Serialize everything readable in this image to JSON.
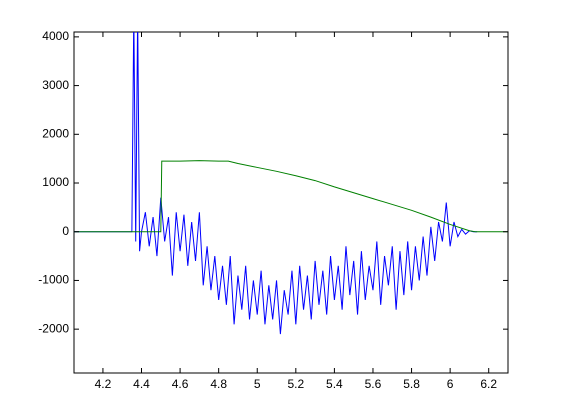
{
  "chart_data": {
    "type": "line",
    "xlim": [
      4.05,
      6.3
    ],
    "ylim": [
      -2900,
      4100
    ],
    "xticks": [
      4.2,
      4.4,
      4.6,
      4.8,
      5,
      5.2,
      5.4,
      5.6,
      5.8,
      6,
      6.2
    ],
    "yticks": [
      -2000,
      -1000,
      0,
      1000,
      2000,
      3000,
      4000
    ],
    "series": [
      {
        "color": "#0000ff",
        "x": [
          4.05,
          4.35,
          4.36,
          4.37,
          4.38,
          4.39,
          4.4,
          4.42,
          4.44,
          4.46,
          4.48,
          4.5,
          4.52,
          4.54,
          4.56,
          4.58,
          4.6,
          4.62,
          4.64,
          4.66,
          4.68,
          4.7,
          4.72,
          4.74,
          4.76,
          4.78,
          4.8,
          4.82,
          4.84,
          4.86,
          4.88,
          4.9,
          4.92,
          4.94,
          4.96,
          4.98,
          5.0,
          5.02,
          5.04,
          5.06,
          5.08,
          5.1,
          5.12,
          5.14,
          5.16,
          5.18,
          5.2,
          5.22,
          5.24,
          5.26,
          5.28,
          5.3,
          5.32,
          5.34,
          5.36,
          5.38,
          5.4,
          5.42,
          5.44,
          5.46,
          5.48,
          5.5,
          5.52,
          5.54,
          5.56,
          5.58,
          5.6,
          5.62,
          5.64,
          5.66,
          5.68,
          5.7,
          5.72,
          5.74,
          5.76,
          5.78,
          5.8,
          5.82,
          5.84,
          5.86,
          5.88,
          5.9,
          5.92,
          5.94,
          5.96,
          5.98,
          6.0,
          6.02,
          6.04,
          6.06,
          6.08,
          6.1,
          6.12,
          6.14
        ],
        "values": [
          0,
          0,
          4500,
          -200,
          4500,
          -400,
          0,
          400,
          -300,
          300,
          -500,
          700,
          -200,
          300,
          -900,
          400,
          -400,
          350,
          -700,
          200,
          -600,
          400,
          -1100,
          -300,
          -1200,
          -500,
          -1400,
          -700,
          -1500,
          -500,
          -1900,
          -900,
          -1600,
          -700,
          -1800,
          -1000,
          -1700,
          -800,
          -1900,
          -1100,
          -1800,
          -1000,
          -2100,
          -1200,
          -1700,
          -800,
          -1900,
          -700,
          -1600,
          -900,
          -1800,
          -600,
          -1500,
          -800,
          -1700,
          -500,
          -1400,
          -700,
          -1600,
          -300,
          -1300,
          -600,
          -1700,
          -400,
          -1400,
          -700,
          -1200,
          -200,
          -1500,
          -500,
          -1100,
          -300,
          -1600,
          -400,
          -1300,
          -200,
          -1200,
          -300,
          -1000,
          -100,
          -900,
          100,
          -600,
          200,
          -200,
          600,
          -300,
          200,
          -100,
          50,
          -50,
          20,
          0,
          0
        ]
      },
      {
        "color": "#008000",
        "x": [
          4.05,
          4.5,
          4.505,
          4.6,
          4.7,
          4.8,
          4.85,
          4.9,
          5.0,
          5.1,
          5.2,
          5.3,
          5.4,
          5.5,
          5.6,
          5.7,
          5.8,
          5.9,
          6.0,
          6.1,
          6.13,
          6.3
        ],
        "values": [
          0,
          0,
          1450,
          1450,
          1460,
          1450,
          1450,
          1400,
          1320,
          1240,
          1150,
          1050,
          920,
          800,
          680,
          560,
          440,
          300,
          150,
          20,
          0,
          0
        ]
      }
    ]
  }
}
